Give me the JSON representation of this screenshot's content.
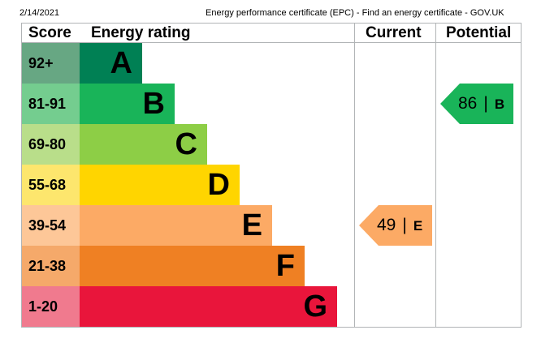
{
  "header": {
    "date": "2/14/2021",
    "title": "Energy performance certificate (EPC) - Find an energy certificate - GOV.UK"
  },
  "chart_data": {
    "type": "bar",
    "columns": {
      "score": "Score",
      "rating": "Energy rating",
      "current": "Current",
      "potential": "Potential"
    },
    "bands": [
      {
        "range": "92+",
        "letter": "A",
        "color": "#008054",
        "score_color": "#67a783"
      },
      {
        "range": "81-91",
        "letter": "B",
        "color": "#19b459",
        "score_color": "#74cd8f"
      },
      {
        "range": "69-80",
        "letter": "C",
        "color": "#8dce46",
        "score_color": "#b9de8a"
      },
      {
        "range": "55-68",
        "letter": "D",
        "color": "#ffd500",
        "score_color": "#fde66d"
      },
      {
        "range": "39-54",
        "letter": "E",
        "color": "#fcaa65",
        "score_color": "#fdc798"
      },
      {
        "range": "21-38",
        "letter": "F",
        "color": "#ef8023",
        "score_color": "#f5a96a"
      },
      {
        "range": "1-20",
        "letter": "G",
        "color": "#e9153b",
        "score_color": "#f07a8e"
      }
    ],
    "current": {
      "value": 49,
      "value_text": "49",
      "separator": "|",
      "letter": "E",
      "color": "#fcaa65"
    },
    "potential": {
      "value": 86,
      "value_text": "86",
      "separator": "|",
      "letter": "B",
      "color": "#19b459"
    }
  }
}
